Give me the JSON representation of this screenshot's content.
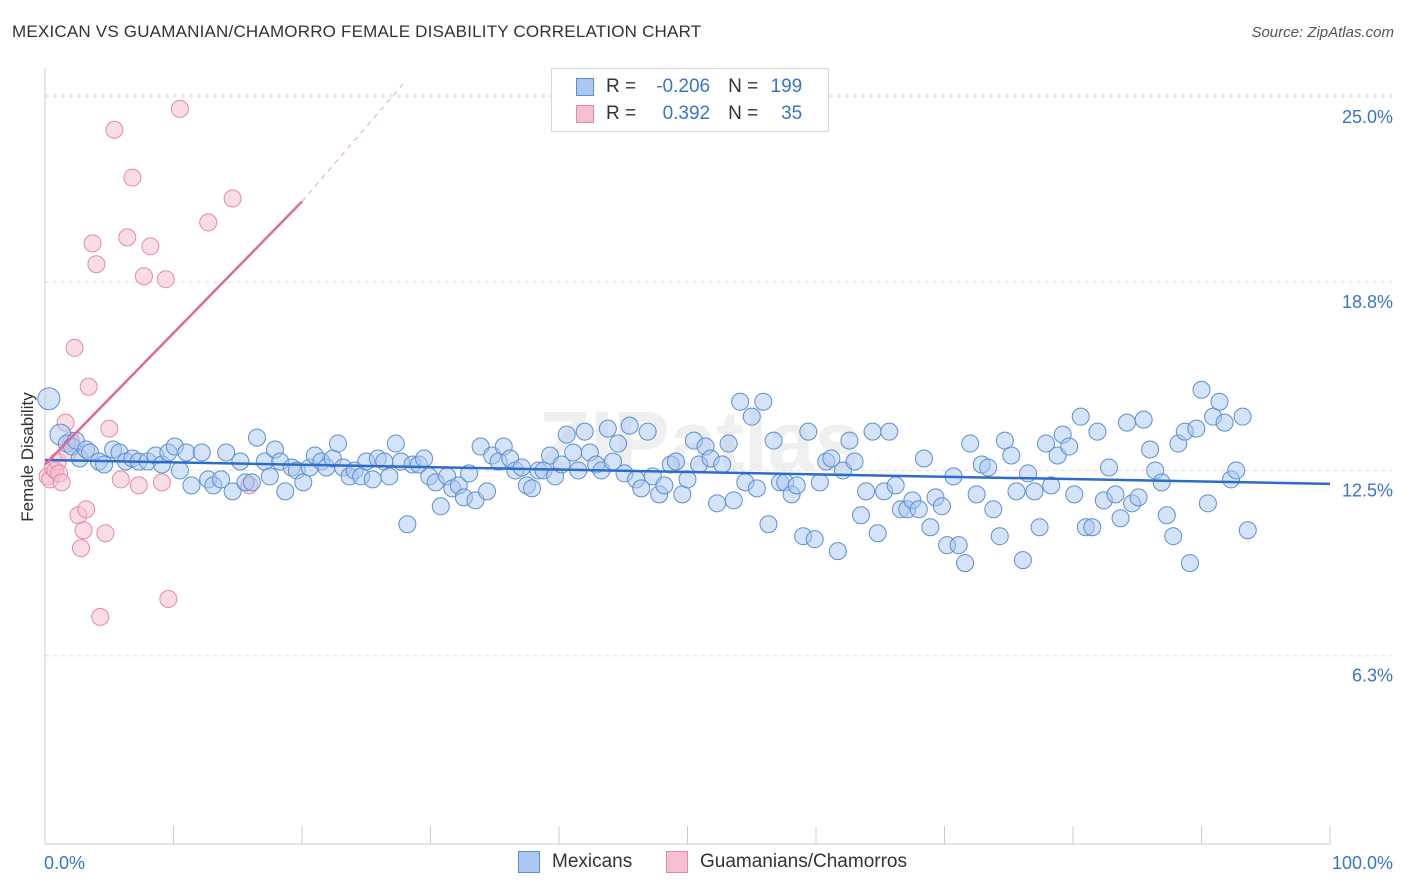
{
  "title": "MEXICAN VS GUAMANIAN/CHAMORRO FEMALE DISABILITY CORRELATION CHART",
  "source": "Source: ZipAtlas.com",
  "watermark": "ZIPatlas",
  "legend": {
    "rows": [
      {
        "r_label": "R =",
        "r_value": "-0.206",
        "n_label": "N =",
        "n_value": "199"
      },
      {
        "r_label": "R =",
        "r_value": "0.392",
        "n_label": "N =",
        "n_value": "35"
      }
    ]
  },
  "colors": {
    "blue_fill": "#aac8ef",
    "blue_stroke": "#5b8fd4",
    "blue_line": "#2e6ccc",
    "pink_fill": "#f6bfd0",
    "pink_stroke": "#e48aa8",
    "pink_line": "#e06a93",
    "axis_text": "#3a74c9",
    "grid": "#dddddd"
  },
  "chart_data": {
    "type": "scatter",
    "title": "MEXICAN VS GUAMANIAN/CHAMORRO FEMALE DISABILITY CORRELATION CHART",
    "xlabel": "",
    "ylabel": "Female Disability",
    "xlim": [
      0,
      100
    ],
    "ylim": [
      0,
      25.9
    ],
    "x_tick_labels": [
      "0.0%",
      "100.0%"
    ],
    "y_ticks": [
      {
        "value": 6.3,
        "label": "6.3%"
      },
      {
        "value": 12.5,
        "label": "12.5%"
      },
      {
        "value": 18.8,
        "label": "18.8%"
      },
      {
        "value": 25.0,
        "label": "25.0%"
      }
    ],
    "legend_position": "top-center",
    "series": [
      {
        "name": "Mexicans",
        "r": -0.206,
        "n": 199,
        "trend": {
          "x": [
            0,
            100
          ],
          "y": [
            12.85,
            12.05
          ]
        },
        "points": [
          [
            0.3,
            14.9
          ],
          [
            1.2,
            13.7
          ],
          [
            1.7,
            13.4
          ],
          [
            2.1,
            13.3
          ],
          [
            2.4,
            13.5
          ],
          [
            2.7,
            12.9
          ],
          [
            3.2,
            13.2
          ],
          [
            3.5,
            13.1
          ],
          [
            4.2,
            12.8
          ],
          [
            4.6,
            12.7
          ],
          [
            5.3,
            13.2
          ],
          [
            5.8,
            13.1
          ],
          [
            6.3,
            12.8
          ],
          [
            6.8,
            12.9
          ],
          [
            7.3,
            12.8
          ],
          [
            8.0,
            12.8
          ],
          [
            8.6,
            13.0
          ],
          [
            9.1,
            12.7
          ],
          [
            9.6,
            13.1
          ],
          [
            10.1,
            13.3
          ],
          [
            10.5,
            12.5
          ],
          [
            11.0,
            13.1
          ],
          [
            11.4,
            12.0
          ],
          [
            12.2,
            13.1
          ],
          [
            12.7,
            12.2
          ],
          [
            13.1,
            12.0
          ],
          [
            13.7,
            12.2
          ],
          [
            14.1,
            13.1
          ],
          [
            14.6,
            11.8
          ],
          [
            15.2,
            12.8
          ],
          [
            15.6,
            12.1
          ],
          [
            16.1,
            12.1
          ],
          [
            16.5,
            13.6
          ],
          [
            17.1,
            12.8
          ],
          [
            17.5,
            12.3
          ],
          [
            17.9,
            13.2
          ],
          [
            18.3,
            12.8
          ],
          [
            18.7,
            11.8
          ],
          [
            19.2,
            12.6
          ],
          [
            19.6,
            12.5
          ],
          [
            20.1,
            12.1
          ],
          [
            20.6,
            12.6
          ],
          [
            21.0,
            13.0
          ],
          [
            21.5,
            12.8
          ],
          [
            21.9,
            12.6
          ],
          [
            22.4,
            12.9
          ],
          [
            22.8,
            13.4
          ],
          [
            23.2,
            12.6
          ],
          [
            23.7,
            12.3
          ],
          [
            24.1,
            12.5
          ],
          [
            24.6,
            12.3
          ],
          [
            25.0,
            12.8
          ],
          [
            25.5,
            12.2
          ],
          [
            25.9,
            12.9
          ],
          [
            26.4,
            12.8
          ],
          [
            26.8,
            12.3
          ],
          [
            27.3,
            13.4
          ],
          [
            27.7,
            12.8
          ],
          [
            28.2,
            10.7
          ],
          [
            28.6,
            12.7
          ],
          [
            29.1,
            12.7
          ],
          [
            29.5,
            12.9
          ],
          [
            29.9,
            12.3
          ],
          [
            30.4,
            12.1
          ],
          [
            30.8,
            11.3
          ],
          [
            31.3,
            12.3
          ],
          [
            31.7,
            11.9
          ],
          [
            32.2,
            12.0
          ],
          [
            32.6,
            11.6
          ],
          [
            33.0,
            12.4
          ],
          [
            33.5,
            11.5
          ],
          [
            33.9,
            13.3
          ],
          [
            34.4,
            11.8
          ],
          [
            34.8,
            13.0
          ],
          [
            35.3,
            12.8
          ],
          [
            35.7,
            13.3
          ],
          [
            36.2,
            12.9
          ],
          [
            36.6,
            12.5
          ],
          [
            37.1,
            12.6
          ],
          [
            37.5,
            12.0
          ],
          [
            37.9,
            11.9
          ],
          [
            38.4,
            12.5
          ],
          [
            38.8,
            12.5
          ],
          [
            39.3,
            13.0
          ],
          [
            39.7,
            12.3
          ],
          [
            40.2,
            12.7
          ],
          [
            40.6,
            13.7
          ],
          [
            41.1,
            13.1
          ],
          [
            41.5,
            12.5
          ],
          [
            42.0,
            13.8
          ],
          [
            42.4,
            13.1
          ],
          [
            42.9,
            12.7
          ],
          [
            43.3,
            12.5
          ],
          [
            43.8,
            13.9
          ],
          [
            44.2,
            12.8
          ],
          [
            44.6,
            13.4
          ],
          [
            45.1,
            12.4
          ],
          [
            45.5,
            14.0
          ],
          [
            46.0,
            12.2
          ],
          [
            46.4,
            11.9
          ],
          [
            46.9,
            13.8
          ],
          [
            47.3,
            12.3
          ],
          [
            47.8,
            11.7
          ],
          [
            48.2,
            12.0
          ],
          [
            48.7,
            12.7
          ],
          [
            49.1,
            12.8
          ],
          [
            49.6,
            11.7
          ],
          [
            50.0,
            12.2
          ],
          [
            50.5,
            13.5
          ],
          [
            50.9,
            12.7
          ],
          [
            51.4,
            13.3
          ],
          [
            51.8,
            12.9
          ],
          [
            52.3,
            11.4
          ],
          [
            52.7,
            12.7
          ],
          [
            53.2,
            13.4
          ],
          [
            53.6,
            11.5
          ],
          [
            54.1,
            14.8
          ],
          [
            54.5,
            12.1
          ],
          [
            55.0,
            14.3
          ],
          [
            55.4,
            11.9
          ],
          [
            55.9,
            14.8
          ],
          [
            56.3,
            10.7
          ],
          [
            56.7,
            13.5
          ],
          [
            57.2,
            12.1
          ],
          [
            57.6,
            12.1
          ],
          [
            58.1,
            11.7
          ],
          [
            58.5,
            12.0
          ],
          [
            59.0,
            10.3
          ],
          [
            59.4,
            13.8
          ],
          [
            59.9,
            10.2
          ],
          [
            60.3,
            12.1
          ],
          [
            60.8,
            12.8
          ],
          [
            61.2,
            12.9
          ],
          [
            61.7,
            9.8
          ],
          [
            62.1,
            12.5
          ],
          [
            62.6,
            13.5
          ],
          [
            63.0,
            12.8
          ],
          [
            63.5,
            11.0
          ],
          [
            63.9,
            11.8
          ],
          [
            64.4,
            13.8
          ],
          [
            64.8,
            10.4
          ],
          [
            65.3,
            11.8
          ],
          [
            65.7,
            13.8
          ],
          [
            66.2,
            12.0
          ],
          [
            66.6,
            11.2
          ],
          [
            67.1,
            11.2
          ],
          [
            67.5,
            11.5
          ],
          [
            68.0,
            11.2
          ],
          [
            68.4,
            12.9
          ],
          [
            68.9,
            10.6
          ],
          [
            69.3,
            11.6
          ],
          [
            69.8,
            11.3
          ],
          [
            70.2,
            10.0
          ],
          [
            70.7,
            12.3
          ],
          [
            71.1,
            10.0
          ],
          [
            71.6,
            9.4
          ],
          [
            72.0,
            13.4
          ],
          [
            72.5,
            11.7
          ],
          [
            72.9,
            12.7
          ],
          [
            73.4,
            12.6
          ],
          [
            73.8,
            11.2
          ],
          [
            74.3,
            10.3
          ],
          [
            74.7,
            13.5
          ],
          [
            75.2,
            13.0
          ],
          [
            75.6,
            11.8
          ],
          [
            76.1,
            9.5
          ],
          [
            76.5,
            12.4
          ],
          [
            77.0,
            11.8
          ],
          [
            77.4,
            10.6
          ],
          [
            77.9,
            13.4
          ],
          [
            78.3,
            12.0
          ],
          [
            78.8,
            13.0
          ],
          [
            79.2,
            13.7
          ],
          [
            79.7,
            13.3
          ],
          [
            80.1,
            11.7
          ],
          [
            80.6,
            14.3
          ],
          [
            81.0,
            10.6
          ],
          [
            81.5,
            10.6
          ],
          [
            81.9,
            13.8
          ],
          [
            82.4,
            11.5
          ],
          [
            82.8,
            12.6
          ],
          [
            83.3,
            11.7
          ],
          [
            83.7,
            10.9
          ],
          [
            84.2,
            14.1
          ],
          [
            84.6,
            11.4
          ],
          [
            85.1,
            11.6
          ],
          [
            85.5,
            14.2
          ],
          [
            86.0,
            13.2
          ],
          [
            86.4,
            12.5
          ],
          [
            86.9,
            12.1
          ],
          [
            87.3,
            11.0
          ],
          [
            87.8,
            10.3
          ],
          [
            88.2,
            13.4
          ],
          [
            88.7,
            13.8
          ],
          [
            89.1,
            9.4
          ],
          [
            89.6,
            13.9
          ],
          [
            90.0,
            15.2
          ],
          [
            90.5,
            11.4
          ],
          [
            90.9,
            14.3
          ],
          [
            91.4,
            14.8
          ],
          [
            91.8,
            14.1
          ],
          [
            92.3,
            12.2
          ],
          [
            92.7,
            12.5
          ],
          [
            93.2,
            14.3
          ],
          [
            93.6,
            10.5
          ]
        ]
      },
      {
        "name": "Guamanians/Chamorros",
        "r": 0.392,
        "n": 35,
        "trend": {
          "x": [
            0,
            20
          ],
          "y": [
            12.7,
            21.5
          ]
        },
        "trend_extension": {
          "x": [
            20,
            28
          ],
          "y": [
            21.5,
            25.5
          ]
        },
        "points": [
          [
            0.2,
            12.3
          ],
          [
            0.4,
            12.2
          ],
          [
            0.6,
            12.6
          ],
          [
            0.8,
            12.5
          ],
          [
            1.0,
            12.8
          ],
          [
            1.1,
            12.4
          ],
          [
            1.3,
            12.1
          ],
          [
            1.6,
            14.1
          ],
          [
            1.8,
            13.1
          ],
          [
            2.0,
            13.5
          ],
          [
            2.3,
            16.6
          ],
          [
            2.6,
            11.0
          ],
          [
            2.8,
            9.9
          ],
          [
            3.0,
            10.5
          ],
          [
            3.2,
            11.2
          ],
          [
            3.4,
            15.3
          ],
          [
            3.7,
            20.1
          ],
          [
            4.0,
            19.4
          ],
          [
            4.3,
            7.6
          ],
          [
            4.7,
            10.4
          ],
          [
            5.0,
            13.9
          ],
          [
            5.4,
            23.9
          ],
          [
            5.9,
            12.2
          ],
          [
            6.4,
            20.3
          ],
          [
            6.8,
            22.3
          ],
          [
            7.3,
            12.0
          ],
          [
            7.7,
            19.0
          ],
          [
            8.2,
            20.0
          ],
          [
            9.1,
            12.1
          ],
          [
            9.6,
            8.2
          ],
          [
            10.5,
            24.6
          ],
          [
            12.7,
            20.8
          ],
          [
            14.6,
            21.6
          ],
          [
            9.4,
            18.9
          ],
          [
            15.9,
            12.0
          ]
        ]
      }
    ]
  },
  "bottom_legend": [
    {
      "name": "Mexicans"
    },
    {
      "name": "Guamanians/Chamorros"
    }
  ]
}
